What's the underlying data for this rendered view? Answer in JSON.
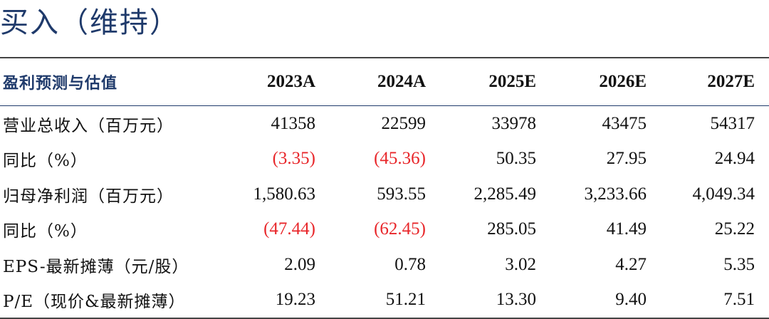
{
  "rating": "买入（维持）",
  "table": {
    "header": {
      "label": "盈利预测与估值",
      "years": [
        "2023A",
        "2024A",
        "2025E",
        "2026E",
        "2027E"
      ]
    },
    "rows": [
      {
        "label": "营业总收入（百万元）",
        "values": [
          "41358",
          "22599",
          "33978",
          "43475",
          "54317"
        ],
        "negative": [
          false,
          false,
          false,
          false,
          false
        ]
      },
      {
        "label": "同比（%）",
        "values": [
          "(3.35)",
          "(45.36)",
          "50.35",
          "27.95",
          "24.94"
        ],
        "negative": [
          true,
          true,
          false,
          false,
          false
        ]
      },
      {
        "label": "归母净利润（百万元）",
        "values": [
          "1,580.63",
          "593.55",
          "2,285.49",
          "3,233.66",
          "4,049.34"
        ],
        "negative": [
          false,
          false,
          false,
          false,
          false
        ]
      },
      {
        "label": "同比（%）",
        "values": [
          "(47.44)",
          "(62.45)",
          "285.05",
          "41.49",
          "25.22"
        ],
        "negative": [
          true,
          true,
          false,
          false,
          false
        ]
      },
      {
        "label": "EPS-最新摊薄（元/股）",
        "values": [
          "2.09",
          "0.78",
          "3.02",
          "4.27",
          "5.35"
        ],
        "negative": [
          false,
          false,
          false,
          false,
          false
        ]
      },
      {
        "label": "P/E（现价&最新摊薄）",
        "values": [
          "19.23",
          "51.21",
          "13.30",
          "9.40",
          "7.51"
        ],
        "negative": [
          false,
          false,
          false,
          false,
          false
        ]
      }
    ],
    "colors": {
      "header_text": "#1f3a6b",
      "negative_text": "#e8262a",
      "body_text": "#111111"
    }
  }
}
